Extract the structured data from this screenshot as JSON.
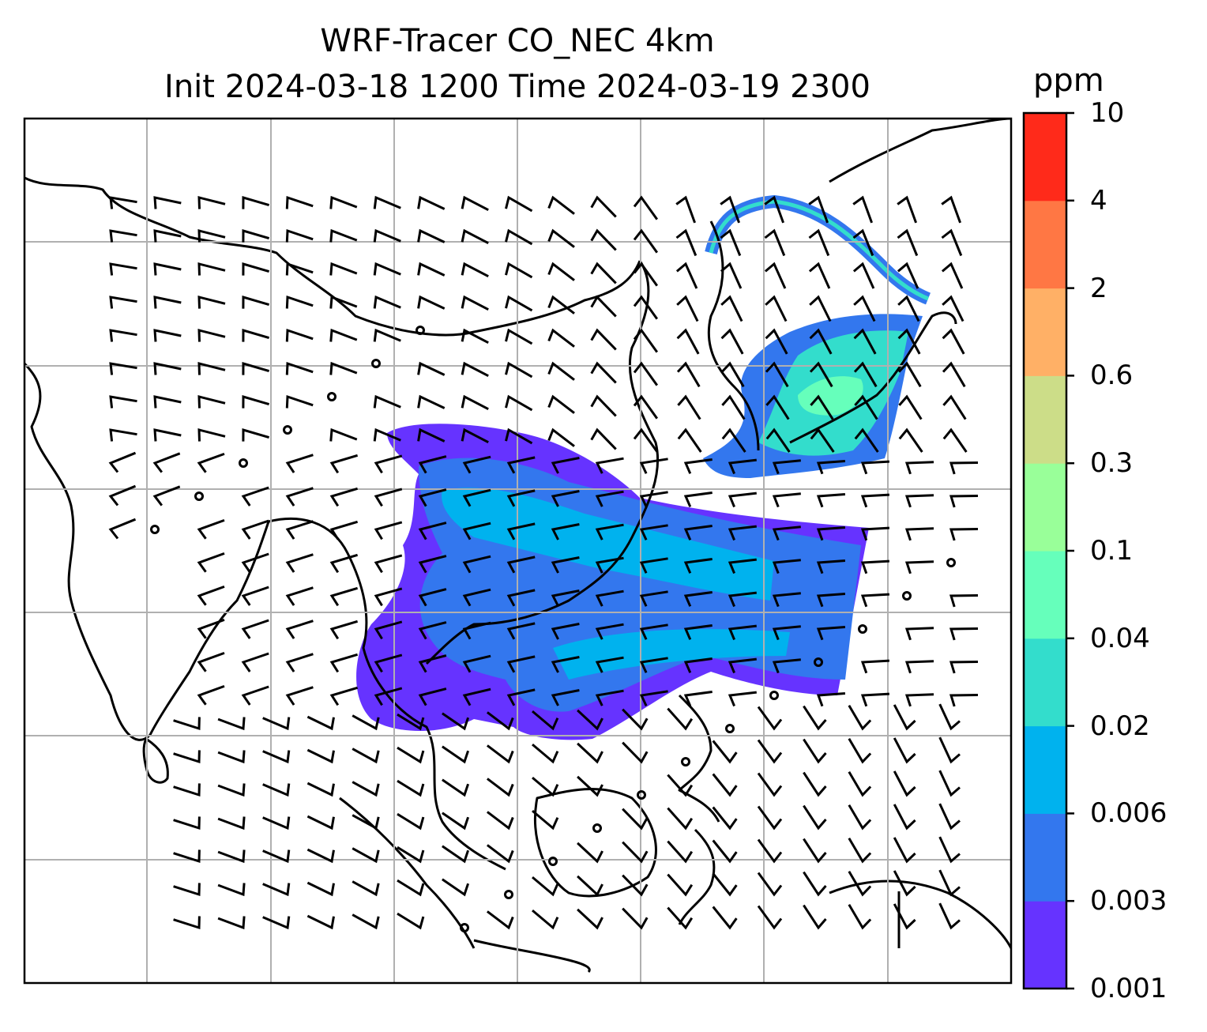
{
  "title": {
    "line1": "WRF-Tracer CO_NEC 4km",
    "line2": "Init 2024-03-18 1200 Time 2024-03-19 2300"
  },
  "colorbar": {
    "unit": "ppm",
    "ticks": [
      "0.001",
      "0.003",
      "0.006",
      "0.02",
      "0.04",
      "0.1",
      "0.3",
      "0.6",
      "2",
      "4",
      "10"
    ],
    "colors": [
      "#6633ff",
      "#3377ee",
      "#00b2ee",
      "#33ddcc",
      "#66ffbb",
      "#99ff99",
      "#ccdd88",
      "#ffb066",
      "#ff7744",
      "#ff2a1a"
    ]
  },
  "map": {
    "gridlines": true,
    "features": [
      "coastlines",
      "country-borders",
      "wind-barbs",
      "tracer-plume"
    ]
  }
}
